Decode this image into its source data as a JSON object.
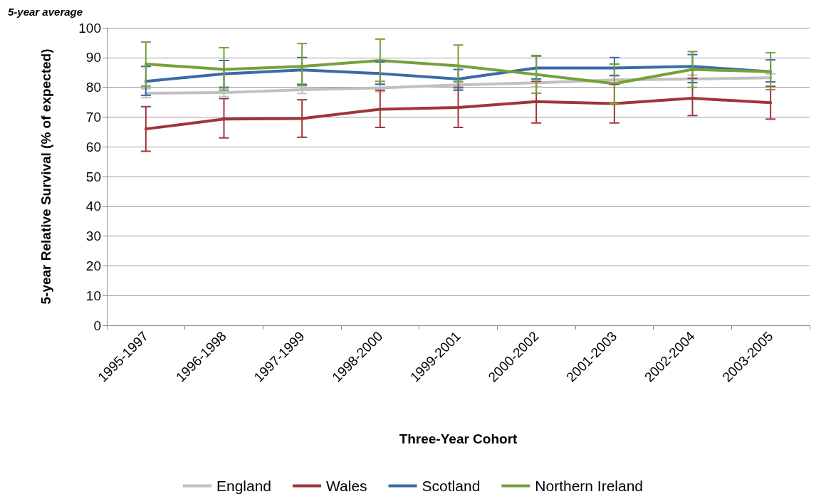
{
  "chart_data": {
    "type": "line",
    "title": "5-year average",
    "xlabel": "Three-Year Cohort",
    "ylabel": "5-year Relative Survival (% of expected)",
    "categories": [
      "1995-1997",
      "1996-1998",
      "1997-1999",
      "1998-2000",
      "1999-2001",
      "2000-2002",
      "2001-2003",
      "2002-2004",
      "2003-2005"
    ],
    "series": [
      {
        "name": "England",
        "color": "#c0c0c0",
        "values": [
          78,
          78.2,
          79.2,
          79.8,
          80.8,
          81.5,
          82.5,
          82.8,
          83.2
        ],
        "errors": [
          1.5,
          1.3,
          1.3,
          1.3,
          1.3,
          1.3,
          1.3,
          1.3,
          1.3
        ]
      },
      {
        "name": "Wales",
        "color": "#a0353a",
        "values": [
          66,
          69.3,
          69.5,
          72.6,
          73.2,
          75.2,
          74.5,
          76.3,
          74.8
        ],
        "errors": [
          [
            58.5,
            73.5
          ],
          [
            63,
            76.2
          ],
          [
            63.2,
            75.8
          ],
          [
            66.5,
            79
          ],
          [
            66.5,
            80
          ],
          [
            68,
            82
          ],
          [
            68,
            81
          ],
          [
            70.5,
            83
          ],
          [
            69.3,
            80.3
          ]
        ]
      },
      {
        "name": "Scotland",
        "color": "#3a6ba5",
        "values": [
          82,
          84.5,
          85.8,
          84.6,
          82.8,
          86.5,
          86.5,
          87,
          85.2
        ],
        "errors": [
          [
            77.3,
            87
          ],
          [
            80,
            89
          ],
          [
            81,
            90
          ],
          [
            81,
            88.5
          ],
          [
            79,
            86
          ],
          [
            82.8,
            90.5
          ],
          [
            84,
            90
          ],
          [
            81.6,
            91
          ],
          [
            81.8,
            89.2
          ]
        ]
      },
      {
        "name": "Northern Ireland",
        "color": "#77a03a",
        "values": [
          87.8,
          86,
          87,
          89,
          87.2,
          84.3,
          81.2,
          86,
          85.2
        ],
        "errors": [
          [
            80.4,
            95.2
          ],
          [
            79,
            93.3
          ],
          [
            80.6,
            94.7
          ],
          [
            82,
            96.2
          ],
          [
            81.8,
            94.2
          ],
          [
            78,
            90.7
          ],
          [
            74.5,
            87.8
          ],
          [
            80,
            92
          ],
          [
            79.2,
            91.6
          ]
        ]
      }
    ],
    "ylim": [
      0,
      100
    ],
    "yticks": [
      0,
      10,
      20,
      30,
      40,
      50,
      60,
      70,
      80,
      90,
      100
    ],
    "grid": "y",
    "legend": "bottom",
    "marker": "none",
    "line_style": "solid"
  }
}
